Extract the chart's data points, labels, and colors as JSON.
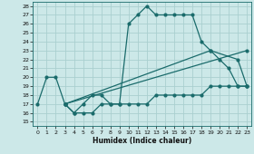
{
  "xlabel": "Humidex (Indice chaleur)",
  "xlim": [
    -0.5,
    23.5
  ],
  "ylim": [
    14.5,
    28.5
  ],
  "yticks": [
    15,
    16,
    17,
    18,
    19,
    20,
    21,
    22,
    23,
    24,
    25,
    26,
    27,
    28
  ],
  "xticks": [
    0,
    1,
    2,
    3,
    4,
    5,
    6,
    7,
    8,
    9,
    10,
    11,
    12,
    13,
    14,
    15,
    16,
    17,
    18,
    19,
    20,
    21,
    22,
    23
  ],
  "bg_color": "#cce8e8",
  "grid_color": "#aacfcf",
  "line_color": "#1a6b6b",
  "line1_x": [
    0,
    1,
    2,
    3,
    4,
    5,
    6,
    7,
    8,
    9,
    10,
    11,
    12,
    13,
    14,
    15,
    16,
    17,
    18,
    19,
    20,
    21,
    22,
    23
  ],
  "line1_y": [
    17,
    20,
    20,
    17,
    16,
    17,
    18,
    18,
    17,
    17,
    26,
    27,
    28,
    27,
    27,
    27,
    27,
    27,
    24,
    23,
    22,
    21,
    19,
    19
  ],
  "line2_x": [
    3,
    4,
    5,
    6,
    7,
    8,
    9,
    10,
    11,
    12,
    13,
    14,
    15,
    16,
    17,
    18,
    19,
    20,
    21,
    22,
    23
  ],
  "line2_y": [
    17,
    16,
    16,
    16,
    17,
    17,
    17,
    17,
    17,
    17,
    18,
    18,
    18,
    18,
    18,
    18,
    19,
    19,
    19,
    19,
    19
  ],
  "line3_x": [
    3,
    23
  ],
  "line3_y": [
    17,
    23
  ],
  "line4_x": [
    3,
    19,
    22,
    23
  ],
  "line4_y": [
    17,
    23,
    22,
    19
  ]
}
